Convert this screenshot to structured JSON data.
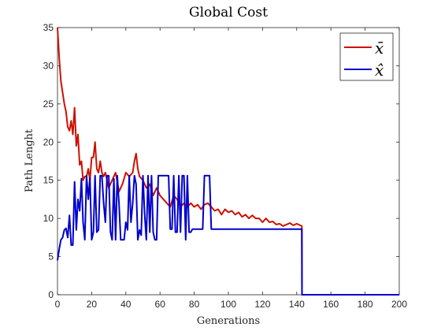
{
  "chart_data": {
    "type": "line",
    "title": "Global Cost",
    "xlabel": "Generations",
    "ylabel": "Path Lenght",
    "xlim": [
      0,
      200
    ],
    "ylim": [
      0,
      35
    ],
    "xticks": [
      "0",
      "20",
      "40",
      "60",
      "80",
      "100",
      "120",
      "140",
      "160",
      "180",
      "200"
    ],
    "yticks": [
      "0",
      "5",
      "10",
      "15",
      "20",
      "25",
      "30",
      "35"
    ],
    "grid": false,
    "legend_position": "top-right",
    "series": [
      {
        "name": "x̄",
        "color": "#cc1100",
        "x": [
          0,
          1,
          2,
          3,
          4,
          5,
          6,
          7,
          8,
          9,
          10,
          11,
          12,
          13,
          14,
          15,
          16,
          17,
          18,
          19,
          20,
          21,
          22,
          23,
          24,
          25,
          26,
          27,
          28,
          29,
          30,
          32,
          34,
          36,
          38,
          40,
          42,
          44,
          45,
          46,
          47,
          48,
          50,
          52,
          54,
          56,
          58,
          60,
          62,
          64,
          66,
          68,
          70,
          72,
          74,
          76,
          78,
          80,
          82,
          84,
          86,
          88,
          90,
          92,
          94,
          96,
          98,
          100,
          102,
          104,
          106,
          108,
          110,
          112,
          114,
          116,
          118,
          120,
          122,
          124,
          126,
          128,
          130,
          132,
          134,
          136,
          138,
          140,
          142,
          143,
          143.1,
          200
        ],
        "values": [
          35,
          31,
          28,
          26.5,
          25,
          24,
          22,
          21.5,
          22.8,
          21,
          24.5,
          19.5,
          21,
          17,
          17.5,
          15,
          15.5,
          15.5,
          16.5,
          15,
          18,
          18,
          20,
          16.5,
          16,
          17.5,
          16,
          15.5,
          16,
          15,
          14,
          15,
          16,
          13.5,
          14.5,
          16,
          15.5,
          16,
          17.5,
          18.5,
          16.5,
          15.5,
          15,
          14,
          14.5,
          13,
          14,
          13,
          12.5,
          12,
          11.5,
          13,
          12.5,
          11.5,
          12,
          11.5,
          12,
          11.5,
          11.8,
          11.2,
          11.8,
          12,
          11.5,
          11,
          11.2,
          10.5,
          11.2,
          10.8,
          11,
          10.5,
          10.8,
          10.2,
          10.5,
          10,
          10.4,
          10,
          10,
          9.5,
          10,
          9.5,
          9.6,
          9.2,
          9.3,
          9,
          9.2,
          9.4,
          9.1,
          9.3,
          9.1,
          9,
          0,
          0
        ]
      },
      {
        "name": "x̂",
        "color": "#0000cc",
        "x": [
          0,
          1,
          2,
          3,
          4,
          5,
          6,
          7,
          8,
          9,
          10,
          11,
          12,
          13,
          14,
          15,
          16,
          17,
          18,
          19,
          20,
          21,
          22,
          23,
          24,
          25,
          26,
          27,
          28,
          29,
          30,
          31,
          32,
          33,
          34,
          35,
          36,
          37,
          38,
          39,
          40,
          41,
          42,
          43,
          44,
          45,
          46,
          47,
          48,
          49,
          50,
          51,
          52,
          53,
          54,
          55,
          56,
          57,
          58,
          59,
          60,
          61,
          62,
          63,
          64,
          65,
          66,
          67,
          68,
          69,
          70,
          71,
          72,
          73,
          74,
          75,
          76,
          77,
          78,
          79,
          80,
          81,
          82,
          83,
          84,
          85,
          86,
          87,
          88,
          89,
          90,
          92,
          100,
          120,
          140,
          142,
          143,
          143.1,
          200
        ],
        "values": [
          4.5,
          6,
          7.2,
          7.5,
          8.5,
          8.7,
          7.5,
          10.4,
          6.5,
          6.5,
          14.8,
          8.5,
          12.5,
          11,
          15.2,
          9.5,
          7.2,
          15.6,
          12.5,
          15.3,
          7.2,
          8.2,
          15.6,
          8.2,
          8.5,
          15.6,
          15.6,
          12,
          9.5,
          15.6,
          15.6,
          8.2,
          7.2,
          15.2,
          7.2,
          15.6,
          12,
          7.2,
          7.2,
          7.2,
          9.5,
          8.5,
          15.6,
          9.5,
          12,
          15.6,
          14.5,
          7.2,
          8.5,
          7.8,
          15.6,
          10.5,
          7.2,
          15.6,
          8.2,
          15.6,
          8.2,
          7.2,
          7.2,
          15.6,
          15.6,
          15.6,
          15.6,
          15.6,
          15.6,
          15.6,
          8.6,
          8.6,
          15.6,
          8.2,
          8.2,
          15.6,
          8.2,
          15.6,
          15.6,
          7.2,
          15.6,
          8.2,
          8.2,
          8.6,
          8.6,
          8.6,
          8.6,
          8.6,
          8.6,
          8.6,
          15.6,
          15.6,
          15.6,
          15.6,
          8.6,
          8.6,
          8.6,
          8.6,
          8.6,
          8.6,
          8.6,
          0,
          0
        ]
      }
    ]
  }
}
